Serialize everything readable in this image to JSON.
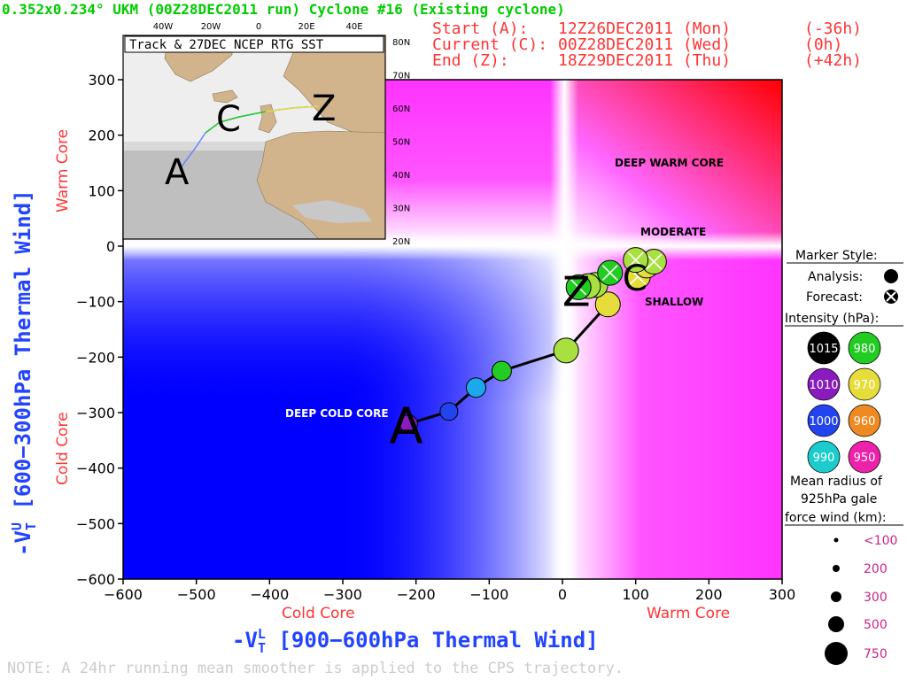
{
  "header": {
    "title": "0.352x0.234° UKM (00Z28DEC2011 run) Cyclone #16 (Existing cyclone)",
    "start_label": "Start (A):",
    "start_time": "12Z26DEC2011 (Mon)",
    "start_offset": "(-36h)",
    "current_label": "Current (C):",
    "current_time": "00Z28DEC2011 (Wed)",
    "current_offset": "(0h)",
    "end_label": "End (Z):",
    "end_time": "18Z29DEC2011 (Thu)",
    "end_offset": "(+42h)"
  },
  "inset": {
    "title": "Track & 27DEC NCEP RTG SST",
    "lon_labels": [
      "40W",
      "20W",
      "0",
      "20E",
      "40E"
    ],
    "lat_labels": [
      "80N",
      "70N",
      "60N",
      "50N",
      "40N",
      "30N",
      "20N"
    ],
    "marker_a": "A",
    "marker_c": "C",
    "marker_z": "Z"
  },
  "note": "NOTE:  A 24hr running mean smoother is applied to the CPS trajectory.",
  "legend": {
    "marker_style_title": "Marker Style:",
    "analysis_label": "Analysis:",
    "forecast_label": "Forecast:",
    "intensity_title": "Intensity (hPa):",
    "intensity": [
      {
        "label": "1015",
        "color": "#000000",
        "text_color": "#ffffff"
      },
      {
        "label": "980",
        "color": "#22cc22",
        "text_color": "#ffffff"
      },
      {
        "label": "1010",
        "color": "#8a1bbf",
        "text_color": "#ffffff"
      },
      {
        "label": "970",
        "color": "#e6dd3a",
        "text_color": "#ffffff"
      },
      {
        "label": "1000",
        "color": "#2244ee",
        "text_color": "#ffffff"
      },
      {
        "label": "960",
        "color": "#ee8a22",
        "text_color": "#ffffff"
      },
      {
        "label": "990",
        "color": "#1ccccc",
        "text_color": "#ffffff"
      },
      {
        "label": "950",
        "color": "#ee22aa",
        "text_color": "#ffffff"
      }
    ],
    "radius_title_1": "Mean radius of",
    "radius_title_2": "925hPa gale",
    "radius_title_3": "force wind (km):",
    "radius": [
      {
        "label": "<100",
        "size": 1
      },
      {
        "label": "200",
        "size": 2
      },
      {
        "label": "300",
        "size": 3
      },
      {
        "label": "500",
        "size": 4
      },
      {
        "label": "750",
        "size": 5
      }
    ]
  },
  "colors": {
    "title_green": "#00cc00",
    "header_red": "#ff3333",
    "axis_blue": "#2244ff",
    "warm": "#ff0000",
    "warm_mid": "#ff44ff",
    "cold": "#0000ff"
  },
  "chart_data": {
    "type": "scatter",
    "xlabel": "-Vₜᴸ [900-600hPa Thermal Wind]",
    "xlabel_main": "-V",
    "xlabel_super": "L",
    "xlabel_sub": "T",
    "xlabel_rest": " [900−600hPa Thermal Wind]",
    "ylabel_main": "-V",
    "ylabel_super": "U",
    "ylabel_sub": "T",
    "ylabel_rest": " [600−300hPa Thermal Wind]",
    "x_left_label": "Cold Core",
    "x_right_label": "Warm Core",
    "y_top_label": "Warm Core",
    "y_bottom_label": "Cold Core",
    "xlim": [
      -600,
      300
    ],
    "ylim": [
      -600,
      300
    ],
    "xticks": [
      -600,
      -500,
      -400,
      -300,
      -200,
      -100,
      0,
      100,
      200,
      300
    ],
    "yticks": [
      -600,
      -500,
      -400,
      -300,
      -200,
      -100,
      0,
      100,
      200,
      300
    ],
    "xtick_labels": [
      "−600",
      "−500",
      "−400",
      "−300",
      "−200",
      "−100",
      "0",
      "100",
      "200",
      "300"
    ],
    "ytick_labels": [
      "−600",
      "−500",
      "−400",
      "−300",
      "−200",
      "−100",
      "0",
      "100",
      "200",
      "300"
    ],
    "region_labels": {
      "deep_warm": "DEEP WARM CORE",
      "moderate": "MODERATE",
      "shallow": "SHALLOW",
      "deep_cold": "DEEP COLD CORE"
    },
    "marker_a": "A",
    "marker_c": "C",
    "marker_z": "Z",
    "track": [
      {
        "x": -210,
        "y": -320,
        "color": "#8a1bbf",
        "forecast": false
      },
      {
        "x": -155,
        "y": -298,
        "color": "#2244ee",
        "forecast": false
      },
      {
        "x": -118,
        "y": -255,
        "color": "#1ca8ee",
        "forecast": false
      },
      {
        "x": -83,
        "y": -225,
        "color": "#22cc22",
        "forecast": false
      },
      {
        "x": 5,
        "y": -188,
        "color": "#a8e040",
        "forecast": false
      },
      {
        "x": 62,
        "y": -105,
        "color": "#e6dd3a",
        "forecast": false
      },
      {
        "x": 45,
        "y": -70,
        "color": "#a8e040",
        "forecast": false
      },
      {
        "x": 35,
        "y": -72,
        "color": "#a8e040",
        "forecast": false
      },
      {
        "x": 22,
        "y": -74,
        "color": "#22cc22",
        "forecast": false
      },
      {
        "x": 65,
        "y": -48,
        "color": "#22cc22",
        "forecast": false
      },
      {
        "x": 103,
        "y": -55,
        "color": "#e6dd3a",
        "forecast": true
      },
      {
        "x": 115,
        "y": -35,
        "color": "#e6dd3a",
        "forecast": true
      },
      {
        "x": 125,
        "y": -28,
        "color": "#a8e040",
        "forecast": true
      },
      {
        "x": 100,
        "y": -25,
        "color": "#a8e040",
        "forecast": true
      }
    ]
  }
}
